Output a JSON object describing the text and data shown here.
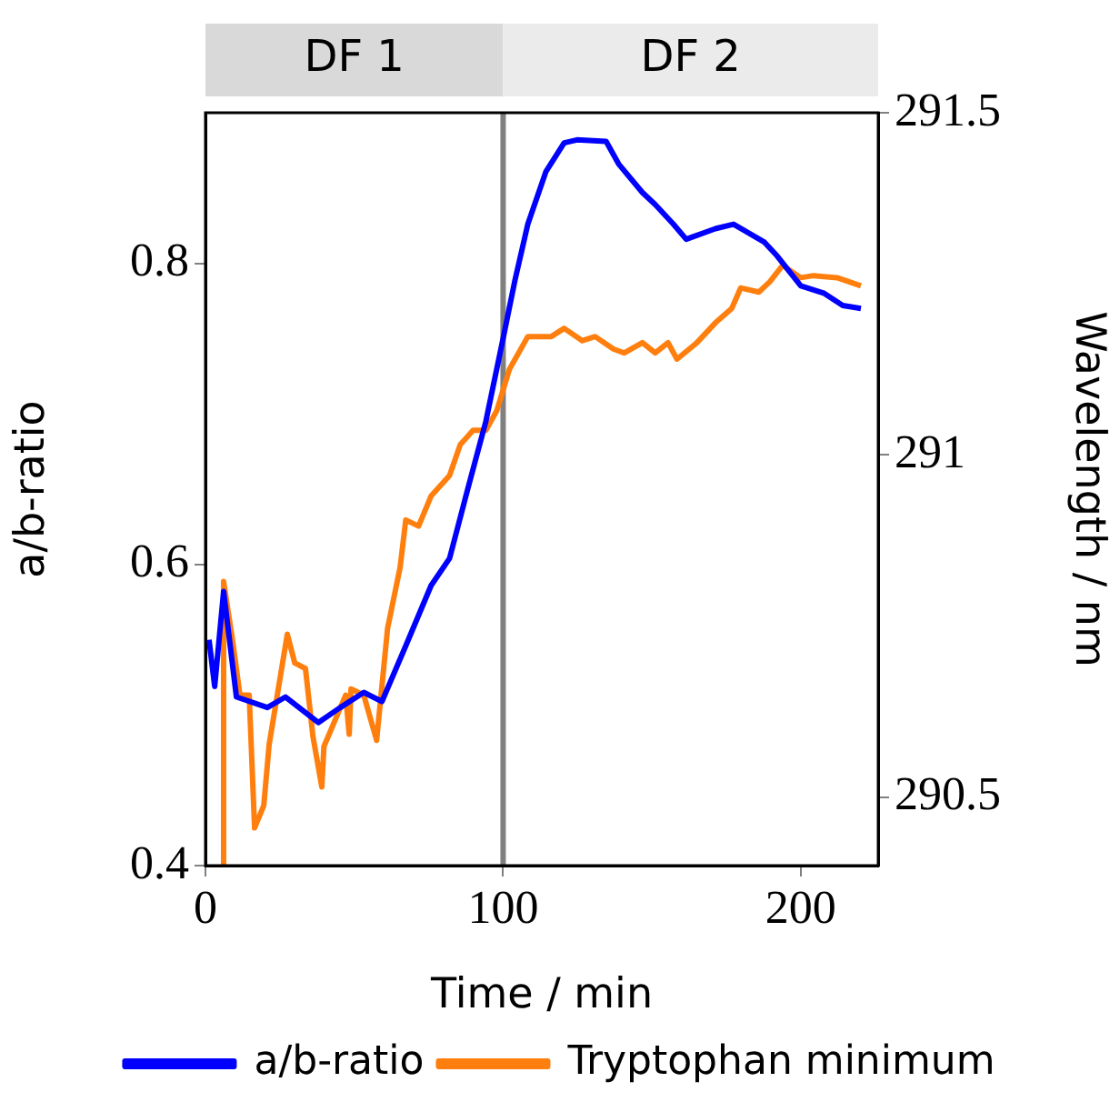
{
  "chart_data": {
    "type": "line",
    "xlabel": "Time / min",
    "ylabel": "a/b-ratio",
    "y2label": "Wavelength / nm",
    "xlim": [
      0,
      226
    ],
    "xticks": [
      0,
      100,
      200
    ],
    "ylim": [
      0.4,
      0.9
    ],
    "yticks": [
      {
        "value": 0.4,
        "label": "0.4"
      },
      {
        "value": 0.6,
        "label": "0.6"
      },
      {
        "value": 0.8,
        "label": "0.8"
      }
    ],
    "y2lim": [
      290.4,
      291.5
    ],
    "y2ticks": [
      290.5,
      291,
      291.5
    ],
    "legend": "bottom",
    "marker": "none",
    "line_style": "solid",
    "annotations": [
      "DF 1",
      "DF 2"
    ],
    "ref_lines": [
      {
        "axis": "x",
        "value": 100,
        "color": "#808080"
      }
    ],
    "series": [
      {
        "name": "a/b-ratio",
        "color": "#0000ff",
        "x": [
          1.2,
          3.1,
          6.1,
          10.4,
          20.8,
          26.9,
          37.9,
          45.3,
          53.2,
          59.3,
          67.3,
          75.8,
          82.0,
          88.1,
          94.2,
          100.3,
          104.0,
          108.3,
          114.4,
          120.5,
          124.8,
          134.6,
          138.8,
          146.8,
          151.1,
          157.2,
          161.5,
          171.3,
          177.4,
          187.8,
          192.0,
          200.0,
          207.9,
          214.1,
          220.2
        ],
        "values": [
          0.55,
          0.519,
          0.582,
          0.512,
          0.505,
          0.512,
          0.495,
          0.505,
          0.515,
          0.509,
          0.546,
          0.586,
          0.604,
          0.65,
          0.695,
          0.753,
          0.789,
          0.826,
          0.861,
          0.88,
          0.882,
          0.881,
          0.866,
          0.847,
          0.839,
          0.826,
          0.816,
          0.823,
          0.826,
          0.814,
          0.805,
          0.785,
          0.78,
          0.772,
          0.77
        ]
      },
      {
        "name": "Tryptophan minimum",
        "color": "#ff7f0e",
        "axis": "y2",
        "x": [
          5.5,
          6.1,
          9.2,
          11.6,
          14.7,
          16.5,
          19.6,
          21.4,
          27.5,
          30.0,
          33.6,
          36.1,
          39.1,
          39.8,
          47.1,
          48.3,
          48.9,
          53.2,
          57.5,
          61.2,
          65.4,
          67.3,
          71.6,
          75.8,
          82.0,
          85.6,
          89.9,
          94.2,
          97.9,
          102.1,
          108.3,
          116.2,
          120.5,
          126.6,
          130.9,
          137.0,
          140.7,
          146.8,
          151.1,
          155.4,
          158.4,
          165.1,
          171.3,
          176.8,
          179.8,
          185.9,
          189.6,
          193.9,
          200.0,
          204.3,
          212.2,
          220.2
        ],
        "values": [
          290.4,
          290.815,
          290.726,
          290.649,
          290.649,
          290.455,
          290.488,
          290.577,
          290.738,
          290.696,
          290.688,
          290.589,
          290.515,
          290.574,
          290.649,
          290.592,
          290.658,
          290.649,
          290.583,
          290.747,
          290.836,
          290.905,
          290.896,
          290.94,
          290.97,
          291.015,
          291.036,
          291.036,
          291.065,
          291.125,
          291.173,
          291.173,
          291.185,
          291.167,
          291.173,
          291.155,
          291.149,
          291.164,
          291.149,
          291.164,
          291.14,
          291.164,
          291.193,
          291.214,
          291.244,
          291.238,
          291.253,
          291.277,
          291.259,
          291.262,
          291.259,
          291.247
        ]
      }
    ]
  }
}
